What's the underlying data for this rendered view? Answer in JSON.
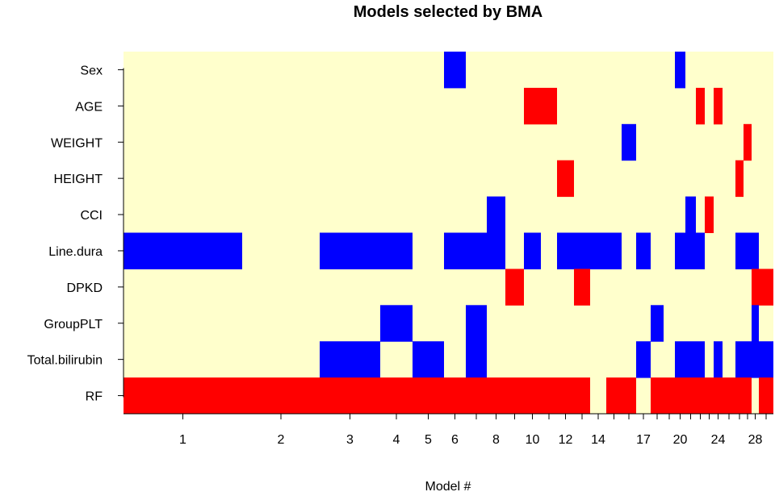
{
  "chart_data": {
    "type": "heatmap",
    "title": "Models selected by BMA",
    "xlabel": "Model #",
    "ylabel": "",
    "variables": [
      "Sex",
      "AGE",
      "WEIGHT",
      "HEIGHT",
      "CCI",
      "Line.dura",
      "DPKD",
      "GroupPLT",
      "Total.bilirubin",
      "RF"
    ],
    "x_tick_labels": [
      "1",
      "2",
      "3",
      "4",
      "5",
      "6",
      "8",
      "10",
      "12",
      "14",
      "17",
      "20",
      "24",
      "28"
    ],
    "x_tick_models": [
      1,
      2,
      3,
      4,
      5,
      6,
      8,
      10,
      12,
      14,
      17,
      20,
      24,
      28
    ],
    "n_models": 29,
    "colors": {
      "background": "#ffffcc",
      "positive": "#ff0000",
      "negative": "#0000ff"
    },
    "cells": {
      "Sex": [
        [
          6,
          6,
          "negative"
        ],
        [
          20,
          20,
          "negative"
        ]
      ],
      "AGE": [
        [
          10,
          11,
          "positive"
        ],
        [
          22,
          22,
          "positive"
        ],
        [
          24,
          24,
          "positive"
        ]
      ],
      "WEIGHT": [
        [
          16,
          16,
          "negative"
        ],
        [
          27,
          27,
          "positive"
        ]
      ],
      "HEIGHT": [
        [
          12,
          12,
          "positive"
        ],
        [
          26,
          26,
          "positive"
        ]
      ],
      "CCI": [
        [
          8,
          8,
          "negative"
        ],
        [
          21,
          21,
          "negative"
        ],
        [
          23,
          23,
          "positive"
        ]
      ],
      "Line.dura": [
        [
          1,
          1,
          "negative"
        ],
        [
          3,
          4,
          "negative"
        ],
        [
          6,
          8,
          "negative"
        ],
        [
          10,
          10,
          "negative"
        ],
        [
          12,
          15,
          "negative"
        ],
        [
          17,
          17,
          "negative"
        ],
        [
          20,
          22,
          "negative"
        ],
        [
          26,
          28,
          "negative"
        ]
      ],
      "DPKD": [
        [
          9,
          9,
          "positive"
        ],
        [
          13,
          13,
          "positive"
        ],
        [
          28,
          28,
          "positive"
        ],
        [
          29,
          29,
          "positive"
        ]
      ],
      "GroupPLT": [
        [
          4,
          4,
          "negative"
        ],
        [
          7,
          7,
          "negative"
        ],
        [
          18,
          18,
          "negative"
        ],
        [
          28,
          28,
          "negative"
        ]
      ],
      "Total.bilirubin": [
        [
          3,
          3,
          "negative"
        ],
        [
          5,
          5,
          "negative"
        ],
        [
          7,
          7,
          "negative"
        ],
        [
          17,
          17,
          "negative"
        ],
        [
          20,
          22,
          "negative"
        ],
        [
          24,
          24,
          "negative"
        ],
        [
          26,
          29,
          "negative"
        ]
      ],
      "RF": [
        [
          1,
          13,
          "positive"
        ],
        [
          15,
          16,
          "positive"
        ],
        [
          18,
          27,
          "positive"
        ],
        [
          29,
          29,
          "positive"
        ]
      ]
    }
  }
}
